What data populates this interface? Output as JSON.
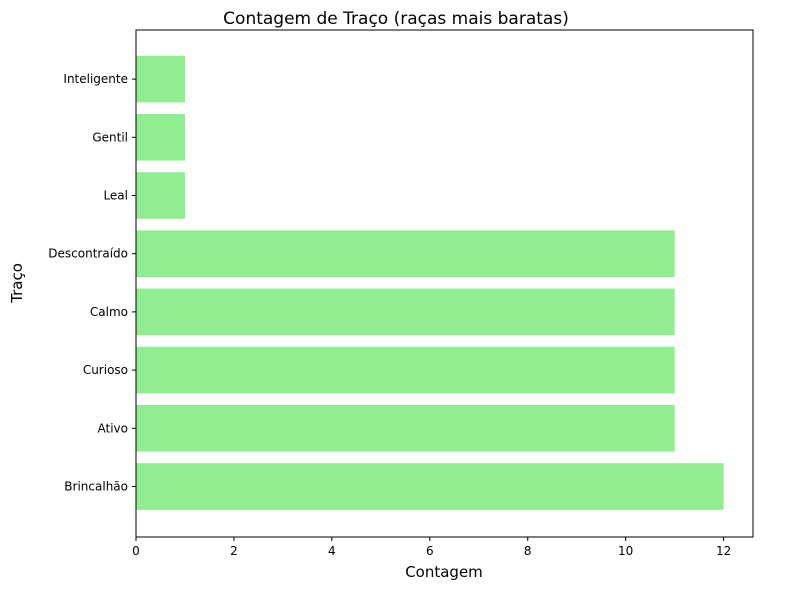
{
  "chart_data": {
    "type": "bar",
    "orientation": "horizontal",
    "title": "Contagem de Traço (raças mais baratas)",
    "xlabel": "Contagem",
    "ylabel": "Traço",
    "categories": [
      "Brincalhão",
      "Ativo",
      "Curioso",
      "Calmo",
      "Descontraído",
      "Leal",
      "Gentil",
      "Inteligente"
    ],
    "values": [
      12,
      11,
      11,
      11,
      11,
      1,
      1,
      1
    ],
    "xlim": [
      0,
      12.6
    ],
    "xticks": [
      0,
      2,
      4,
      6,
      8,
      10,
      12
    ],
    "bar_color": "#90ee90",
    "grid": false,
    "legend": "none"
  }
}
